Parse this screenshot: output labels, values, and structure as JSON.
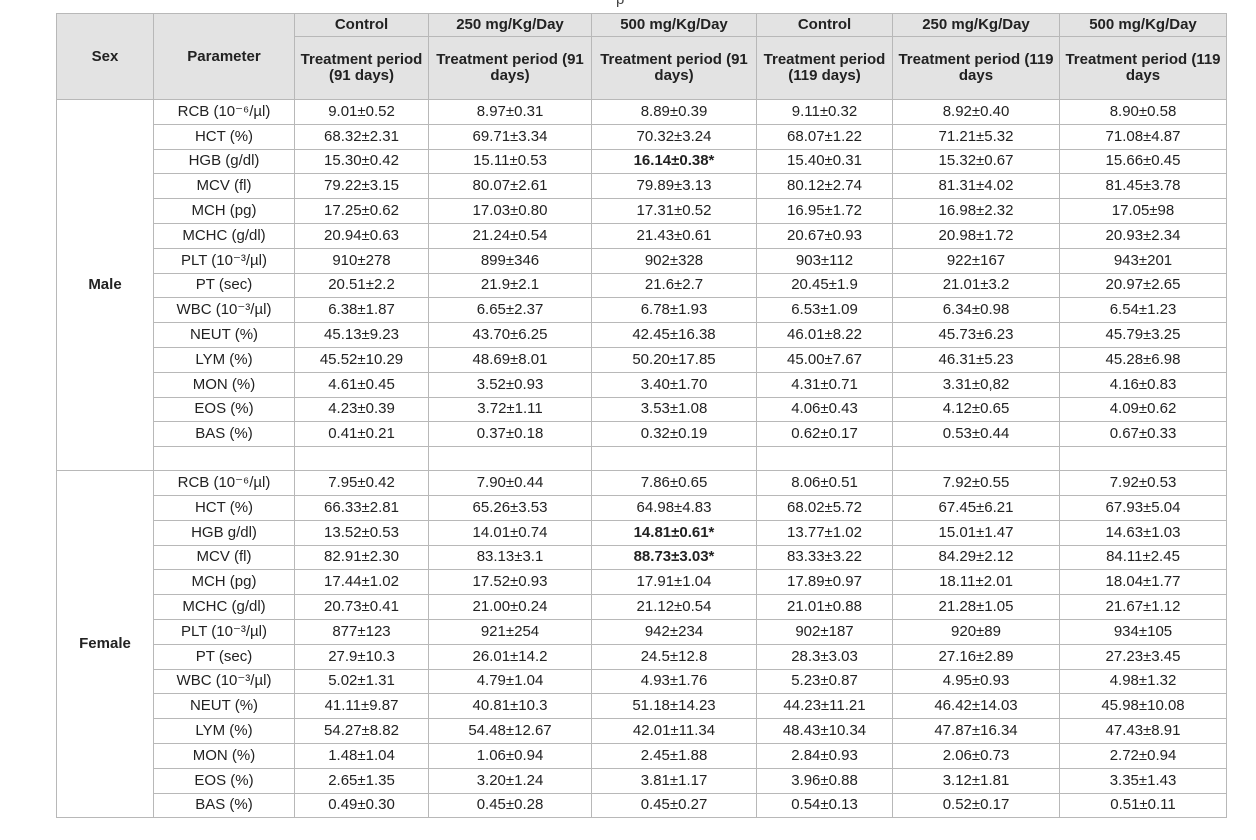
{
  "caption_fragment": "p",
  "header": {
    "sex": "Sex",
    "parameter": "Parameter",
    "groups": [
      "Control",
      "250 mg/Kg/Day",
      "500 mg/Kg/Day",
      "Control",
      "250 mg/Kg/Day",
      "500 mg/Kg/Day"
    ],
    "periods": [
      "Treatment period (91 days)",
      "Treatment period (91 days)",
      "Treatment period (91 days)",
      "Treatment period (119 days)",
      "Treatment period (119 days",
      "Treatment period (119 days"
    ]
  },
  "sections": [
    {
      "sex": "Male",
      "rows": [
        {
          "param": "RCB (10⁻⁶/µl)",
          "values": [
            "9.01±0.52",
            "8.97±0.31",
            "8.89±0.39",
            "9.11±0.32",
            "8.92±0.40",
            "8.90±0.58"
          ]
        },
        {
          "param": "HCT (%)",
          "values": [
            "68.32±2.31",
            "69.71±3.34",
            "70.32±3.24",
            "68.07±1.22",
            "71.21±5.32",
            "71.08±4.87"
          ]
        },
        {
          "param": "HGB (g/dl)",
          "values": [
            "15.30±0.42",
            "15.11±0.53",
            "16.14±0.38*",
            "15.40±0.31",
            "15.32±0.67",
            "15.66±0.45"
          ],
          "bold": [
            2
          ]
        },
        {
          "param": "MCV (fl)",
          "values": [
            "79.22±3.15",
            "80.07±2.61",
            "79.89±3.13",
            "80.12±2.74",
            "81.31±4.02",
            "81.45±3.78"
          ]
        },
        {
          "param": "MCH (pg)",
          "values": [
            "17.25±0.62",
            "17.03±0.80",
            "17.31±0.52",
            "16.95±1.72",
            "16.98±2.32",
            "17.05±98"
          ]
        },
        {
          "param": "MCHC (g/dl)",
          "values": [
            "20.94±0.63",
            "21.24±0.54",
            "21.43±0.61",
            "20.67±0.93",
            "20.98±1.72",
            "20.93±2.34"
          ]
        },
        {
          "param": "PLT (10⁻³/µl)",
          "values": [
            "910±278",
            "899±346",
            "902±328",
            "903±112",
            "922±167",
            "943±201"
          ]
        },
        {
          "param": "PT (sec)",
          "values": [
            "20.51±2.2",
            "21.9±2.1",
            "21.6±2.7",
            "20.45±1.9",
            "21.01±3.2",
            "20.97±2.65"
          ]
        },
        {
          "param": "WBC (10⁻³/µl)",
          "values": [
            "6.38±1.87",
            "6.65±2.37",
            "6.78±1.93",
            "6.53±1.09",
            "6.34±0.98",
            "6.54±1.23"
          ]
        },
        {
          "param": "NEUT (%)",
          "values": [
            "45.13±9.23",
            "43.70±6.25",
            "42.45±16.38",
            "46.01±8.22",
            "45.73±6.23",
            "45.79±3.25"
          ]
        },
        {
          "param": "LYM (%)",
          "values": [
            "45.52±10.29",
            "48.69±8.01",
            "50.20±17.85",
            "45.00±7.67",
            "46.31±5.23",
            "45.28±6.98"
          ]
        },
        {
          "param": "MON (%)",
          "values": [
            "4.61±0.45",
            "3.52±0.93",
            "3.40±1.70",
            "4.31±0.71",
            "3.31±0,82",
            "4.16±0.83"
          ]
        },
        {
          "param": "EOS (%)",
          "values": [
            "4.23±0.39",
            "3.72±1.11",
            "3.53±1.08",
            "4.06±0.43",
            "4.12±0.65",
            "4.09±0.62"
          ]
        },
        {
          "param": "BAS (%)",
          "values": [
            "0.41±0.21",
            "0.37±0.18",
            "0.32±0.19",
            "0.62±0.17",
            "0.53±0.44",
            "0.67±0.33"
          ]
        }
      ]
    },
    {
      "sex": "Female",
      "rows": [
        {
          "param": "RCB (10⁻⁶/µl)",
          "values": [
            "7.95±0.42",
            "7.90±0.44",
            "7.86±0.65",
            "8.06±0.51",
            "7.92±0.55",
            "7.92±0.53"
          ]
        },
        {
          "param": "HCT (%)",
          "values": [
            "66.33±2.81",
            "65.26±3.53",
            "64.98±4.83",
            "68.02±5.72",
            "67.45±6.21",
            "67.93±5.04"
          ]
        },
        {
          "param": "HGB g/dl)",
          "values": [
            "13.52±0.53",
            "14.01±0.74",
            "14.81±0.61*",
            "13.77±1.02",
            "15.01±1.47",
            "14.63±1.03"
          ],
          "bold": [
            2
          ]
        },
        {
          "param": "MCV (fl)",
          "values": [
            "82.91±2.30",
            "83.13±3.1",
            "88.73±3.03*",
            "83.33±3.22",
            "84.29±2.12",
            "84.11±2.45"
          ],
          "bold": [
            2
          ]
        },
        {
          "param": "MCH (pg)",
          "values": [
            "17.44±1.02",
            "17.52±0.93",
            "17.91±1.04",
            "17.89±0.97",
            "18.11±2.01",
            "18.04±1.77"
          ]
        },
        {
          "param": "MCHC (g/dl)",
          "values": [
            "20.73±0.41",
            "21.00±0.24",
            "21.12±0.54",
            "21.01±0.88",
            "21.28±1.05",
            "21.67±1.12"
          ]
        },
        {
          "param": "PLT (10⁻³/µl)",
          "values": [
            "877±123",
            "921±254",
            "942±234",
            "902±187",
            "920±89",
            "934±105"
          ]
        },
        {
          "param": "PT (sec)",
          "values": [
            "27.9±10.3",
            "26.01±14.2",
            "24.5±12.8",
            "28.3±3.03",
            "27.16±2.89",
            "27.23±3.45"
          ]
        },
        {
          "param": "WBC (10⁻³/µl)",
          "values": [
            "5.02±1.31",
            "4.79±1.04",
            "4.93±1.76",
            "5.23±0.87",
            "4.95±0.93",
            "4.98±1.32"
          ]
        },
        {
          "param": "NEUT (%)",
          "values": [
            "41.11±9.87",
            "40.81±10.3",
            "51.18±14.23",
            "44.23±11.21",
            "46.42±14.03",
            "45.98±10.08"
          ]
        },
        {
          "param": "LYM (%)",
          "values": [
            "54.27±8.82",
            "54.48±12.67",
            "42.01±11.34",
            "48.43±10.34",
            "47.87±16.34",
            "47.43±8.91"
          ]
        },
        {
          "param": "MON (%)",
          "values": [
            "1.48±1.04",
            "1.06±0.94",
            "2.45±1.88",
            "2.84±0.93",
            "2.06±0.73",
            "2.72±0.94"
          ]
        },
        {
          "param": "EOS (%)",
          "values": [
            "2.65±1.35",
            "3.20±1.24",
            "3.81±1.17",
            "3.96±0.88",
            "3.12±1.81",
            "3.35±1.43"
          ]
        },
        {
          "param": "BAS (%)",
          "values": [
            "0.49±0.30",
            "0.45±0.28",
            "0.45±0.27",
            "0.54±0.13",
            "0.52±0.17",
            "0.51±0.11"
          ]
        }
      ]
    }
  ]
}
